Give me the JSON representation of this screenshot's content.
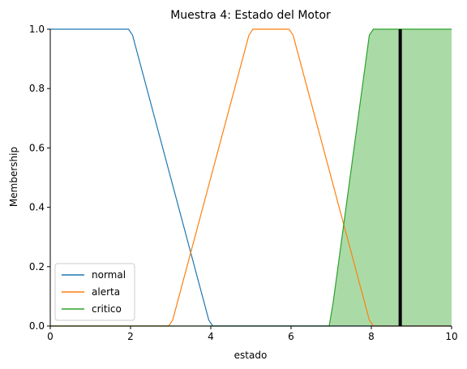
{
  "chart_data": {
    "type": "line",
    "title": "Muestra 4: Estado del Motor",
    "xlabel": "estado",
    "ylabel": "Membership",
    "xlim": [
      0,
      10
    ],
    "ylim": [
      0,
      1
    ],
    "xticks": [
      0,
      2,
      4,
      6,
      8,
      10
    ],
    "yticks": [
      0.0,
      0.2,
      0.4,
      0.6,
      0.8,
      1.0
    ],
    "grid": false,
    "legend_position": "lower-left",
    "series": [
      {
        "name": "normal",
        "color": "#1f77b4",
        "x": [
          0,
          1.95,
          2.05,
          3.95,
          4.05,
          10
        ],
        "y": [
          1,
          1,
          0.98,
          0.02,
          0,
          0
        ]
      },
      {
        "name": "alerta",
        "color": "#ff7f0e",
        "x": [
          0,
          2.95,
          3.05,
          4.95,
          5.05,
          5.95,
          6.05,
          7.95,
          8.05,
          10
        ],
        "y": [
          0,
          0,
          0.02,
          0.98,
          1,
          1,
          0.98,
          0.02,
          0,
          0
        ]
      },
      {
        "name": "critico",
        "color": "#2ca02c",
        "fill": "#aadba7",
        "filled": true,
        "x": [
          0,
          6.95,
          7.05,
          7.95,
          8.05,
          10
        ],
        "y": [
          0,
          0,
          0.08,
          0.98,
          1,
          1
        ]
      }
    ],
    "marker_line": {
      "x": 8.72,
      "color": "#000000"
    }
  }
}
